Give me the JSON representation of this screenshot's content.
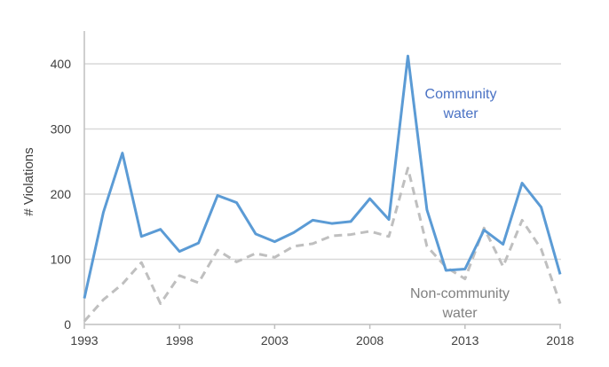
{
  "chart_data": {
    "type": "line",
    "title": "",
    "xlabel": "",
    "ylabel": "# Violations",
    "xlim": [
      1993,
      2018
    ],
    "ylim": [
      0,
      400
    ],
    "xticks": [
      1993,
      1998,
      2003,
      2008,
      2013,
      2018
    ],
    "yticks": [
      0,
      100,
      200,
      300,
      400
    ],
    "grid": "horizontal",
    "x": [
      1993,
      1994,
      1995,
      1996,
      1997,
      1998,
      1999,
      2000,
      2001,
      2002,
      2003,
      2004,
      2005,
      2006,
      2007,
      2008,
      2009,
      2010,
      2011,
      2012,
      2013,
      2014,
      2015,
      2016,
      2017,
      2018
    ],
    "series": [
      {
        "name": "Community water",
        "label_lines": [
          "Community",
          "water"
        ],
        "color": "#5b9bd5",
        "label_color": "#4a72c4",
        "style": "solid",
        "values": [
          40,
          172,
          263,
          135,
          146,
          112,
          125,
          198,
          187,
          139,
          127,
          141,
          160,
          155,
          158,
          193,
          161,
          412,
          176,
          83,
          85,
          145,
          123,
          217,
          180,
          77
        ]
      },
      {
        "name": "Non-community water",
        "label_lines": [
          "Non-community",
          "water"
        ],
        "color": "#bfbfbf",
        "label_color": "#808080",
        "style": "dashed",
        "values": [
          5,
          38,
          62,
          95,
          32,
          75,
          64,
          114,
          96,
          109,
          103,
          120,
          124,
          136,
          138,
          143,
          135,
          240,
          120,
          88,
          70,
          148,
          89,
          160,
          116,
          32
        ]
      }
    ]
  }
}
